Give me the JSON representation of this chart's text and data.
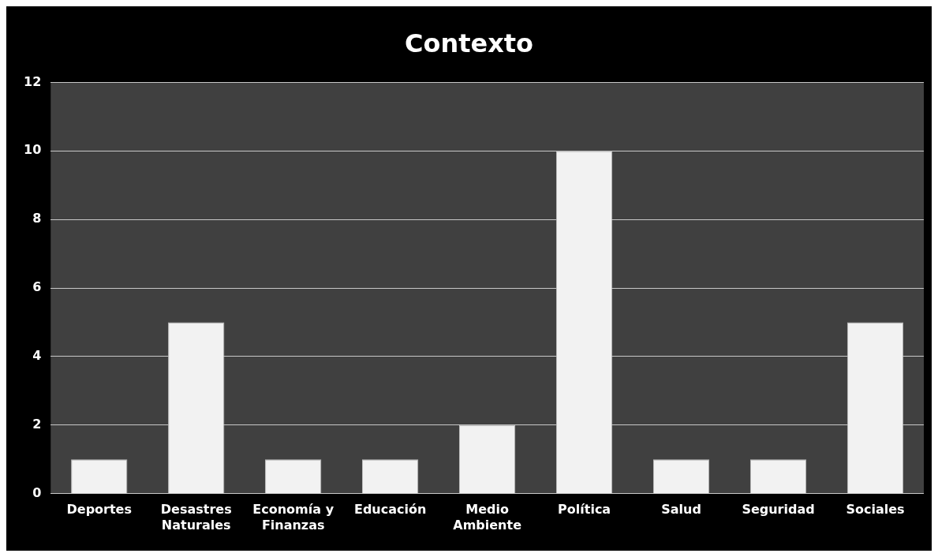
{
  "chart_data": {
    "type": "bar",
    "title": "Contexto",
    "categories": [
      "Deportes",
      "Desastres Naturales",
      "Economía y Finanzas",
      "Educación",
      "Medio Ambiente",
      "Política",
      "Salud",
      "Seguridad",
      "Sociales"
    ],
    "values": [
      1,
      5,
      1,
      1,
      2,
      10,
      1,
      1,
      5
    ],
    "color": "#f2f2f2",
    "ylim": [
      0,
      12
    ],
    "yticks": [
      0,
      2,
      4,
      6,
      8,
      10,
      12
    ],
    "grid": "y",
    "legend": false
  }
}
